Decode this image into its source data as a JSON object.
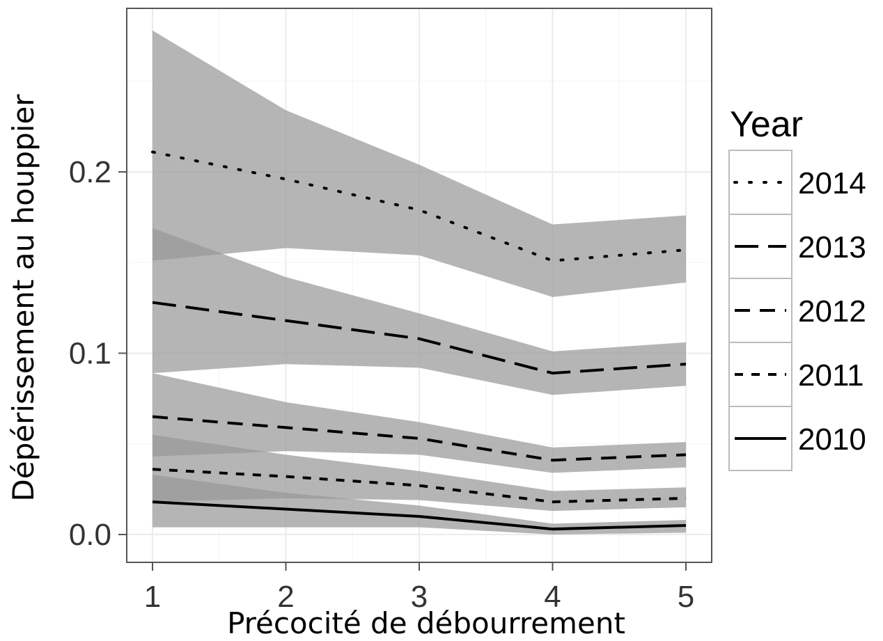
{
  "chart_data": {
    "type": "line",
    "title": "",
    "xlabel": "Précocité de débourrement",
    "ylabel": "Dépérissement au houppier",
    "x": [
      1,
      2,
      3,
      4,
      5
    ],
    "x_ticks": [
      "1",
      "2",
      "3",
      "4",
      "5"
    ],
    "y_ticks": [
      0.0,
      0.1,
      0.2
    ],
    "y_tick_labels": [
      "0.0",
      "0.1",
      "0.2"
    ],
    "xlim": [
      0.8,
      5.2
    ],
    "ylim": [
      -0.015,
      0.29
    ],
    "grid": true,
    "legend_position": "right",
    "legend": {
      "title": "Year",
      "order": [
        "2014",
        "2013",
        "2012",
        "2011",
        "2010"
      ]
    },
    "colors": {
      "band": "#999999",
      "band_opacity": 0.72,
      "line": "#000000",
      "panel_bg": "#ffffff",
      "grid": "#ebebeb",
      "border": "#555555"
    },
    "series": [
      {
        "name": "2014",
        "linestyle": "dotted",
        "values": [
          0.211,
          0.196,
          0.179,
          0.151,
          0.157
        ],
        "lower": [
          0.151,
          0.158,
          0.154,
          0.131,
          0.139
        ],
        "upper": [
          0.278,
          0.234,
          0.204,
          0.171,
          0.176
        ]
      },
      {
        "name": "2013",
        "linestyle": "longdash",
        "values": [
          0.128,
          0.118,
          0.108,
          0.089,
          0.094
        ],
        "lower": [
          0.089,
          0.094,
          0.092,
          0.077,
          0.082
        ],
        "upper": [
          0.169,
          0.142,
          0.122,
          0.101,
          0.106
        ]
      },
      {
        "name": "2012",
        "linestyle": "dashed",
        "values": [
          0.065,
          0.059,
          0.053,
          0.041,
          0.044
        ],
        "lower": [
          0.043,
          0.046,
          0.044,
          0.034,
          0.037
        ],
        "upper": [
          0.089,
          0.073,
          0.062,
          0.048,
          0.051
        ]
      },
      {
        "name": "2011",
        "linestyle": "shortdash",
        "values": [
          0.036,
          0.032,
          0.027,
          0.018,
          0.02
        ],
        "lower": [
          0.018,
          0.02,
          0.019,
          0.013,
          0.015
        ],
        "upper": [
          0.055,
          0.044,
          0.035,
          0.024,
          0.026
        ]
      },
      {
        "name": "2010",
        "linestyle": "solid",
        "values": [
          0.018,
          0.014,
          0.01,
          0.003,
          0.005
        ],
        "lower": [
          0.004,
          0.004,
          0.004,
          0.0,
          0.001
        ],
        "upper": [
          0.033,
          0.023,
          0.016,
          0.006,
          0.008
        ]
      }
    ]
  }
}
